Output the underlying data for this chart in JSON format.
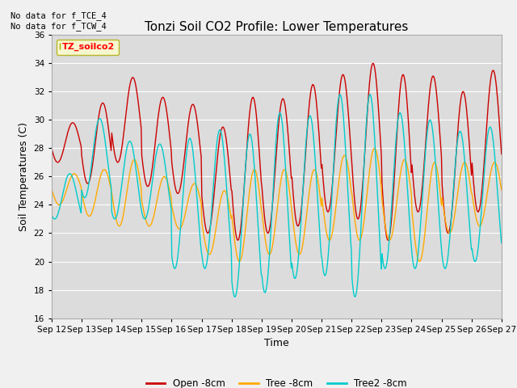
{
  "title": "Tonzi Soil CO2 Profile: Lower Temperatures",
  "ylabel": "Soil Temperatures (C)",
  "xlabel": "Time",
  "annotation": "No data for f_TCE_4\nNo data for f_TCW_4",
  "legend_label": "TZ_soilco2",
  "ylim": [
    16,
    36
  ],
  "yticks": [
    16,
    18,
    20,
    22,
    24,
    26,
    28,
    30,
    32,
    34,
    36
  ],
  "xtick_labels": [
    "Sep 12",
    "Sep 13",
    "Sep 14",
    "Sep 15",
    "Sep 16",
    "Sep 17",
    "Sep 18",
    "Sep 19",
    "Sep 20",
    "Sep 21",
    "Sep 22",
    "Sep 23",
    "Sep 24",
    "Sep 25",
    "Sep 26",
    "Sep 27"
  ],
  "series_labels": [
    "Open -8cm",
    "Tree -8cm",
    "Tree2 -8cm"
  ],
  "colors": [
    "#cc0000",
    "#ffaa00",
    "#00cccc"
  ],
  "background_color": "#dcdcdc",
  "fig_background": "#f0f0f0",
  "title_fontsize": 11,
  "axis_label_fontsize": 9,
  "tick_fontsize": 7.5,
  "open_peaks": [
    29.8,
    31.2,
    33.0,
    31.6,
    31.1,
    29.5,
    31.6,
    31.5,
    32.5,
    33.2,
    34.0,
    33.2,
    33.1,
    32.0,
    33.5,
    33.8
  ],
  "open_troughs": [
    27.0,
    25.5,
    27.0,
    25.3,
    24.8,
    22.0,
    21.5,
    22.0,
    22.5,
    23.5,
    23.0,
    21.5,
    23.5,
    22.0,
    23.5,
    27.5
  ],
  "tree_peaks": [
    26.2,
    26.5,
    27.2,
    26.0,
    25.5,
    25.0,
    26.5,
    26.5,
    26.5,
    27.5,
    28.0,
    27.2,
    27.0,
    27.0,
    27.0,
    27.5
  ],
  "tree_troughs": [
    24.0,
    23.2,
    22.5,
    22.5,
    22.3,
    20.5,
    20.0,
    20.5,
    20.5,
    21.5,
    21.5,
    21.5,
    20.0,
    22.0,
    22.5,
    23.0
  ],
  "tree2_peaks": [
    26.2,
    30.1,
    28.5,
    28.3,
    28.7,
    29.3,
    29.0,
    30.5,
    30.3,
    31.8,
    31.8,
    30.5,
    30.0,
    29.2,
    29.5,
    30.0
  ],
  "tree2_troughs": [
    23.0,
    24.5,
    23.0,
    23.0,
    19.5,
    19.5,
    17.5,
    17.8,
    18.8,
    19.0,
    17.5,
    19.5,
    19.5,
    19.5,
    20.0,
    25.0
  ]
}
